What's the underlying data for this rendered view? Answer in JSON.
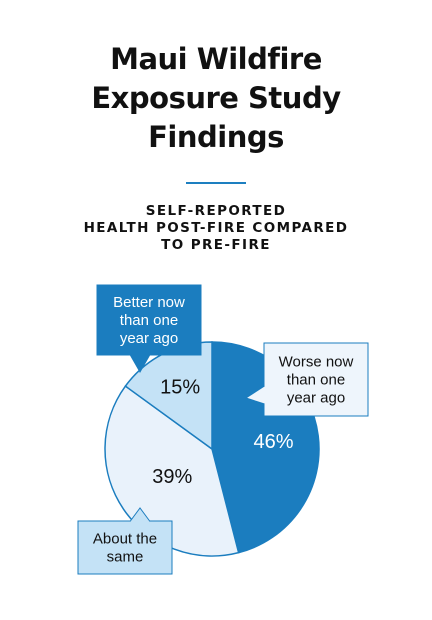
{
  "title_lines": [
    "Maui Wildfire",
    "Exposure Study",
    "Findings"
  ],
  "subtitle_lines": [
    "SELF-REPORTED",
    "HEALTH POST-FIRE COMPARED",
    "TO PRE-FIRE"
  ],
  "colors": {
    "accent": "#1d7fc0",
    "worse": "#1b7dbf",
    "better": "#c4e2f6",
    "same": "#e9f2fb",
    "outline": "#1b7dbf",
    "text_dark": "#111111",
    "text_light": "#ffffff"
  },
  "chart_data": {
    "type": "pie",
    "start": "12 o'clock",
    "direction": "clockwise",
    "slices": [
      {
        "label": [
          "Worse now",
          "than one",
          "year ago"
        ],
        "value": 46,
        "value_label": "46%",
        "color": "#1b7dbf",
        "value_text_color": "#ffffff",
        "callout_fill": "#eef5fc",
        "callout_text_color": "#111111"
      },
      {
        "label": [
          "About the",
          "same"
        ],
        "value": 39,
        "value_label": "39%",
        "color": "#e9f2fb",
        "value_text_color": "#111111",
        "callout_fill": "#c4e2f6",
        "callout_text_color": "#111111"
      },
      {
        "label": [
          "Better now",
          "than one",
          "year ago"
        ],
        "value": 15,
        "value_label": "15%",
        "color": "#c4e2f6",
        "value_text_color": "#111111",
        "callout_fill": "#1b7dbf",
        "callout_text_color": "#ffffff"
      }
    ]
  }
}
